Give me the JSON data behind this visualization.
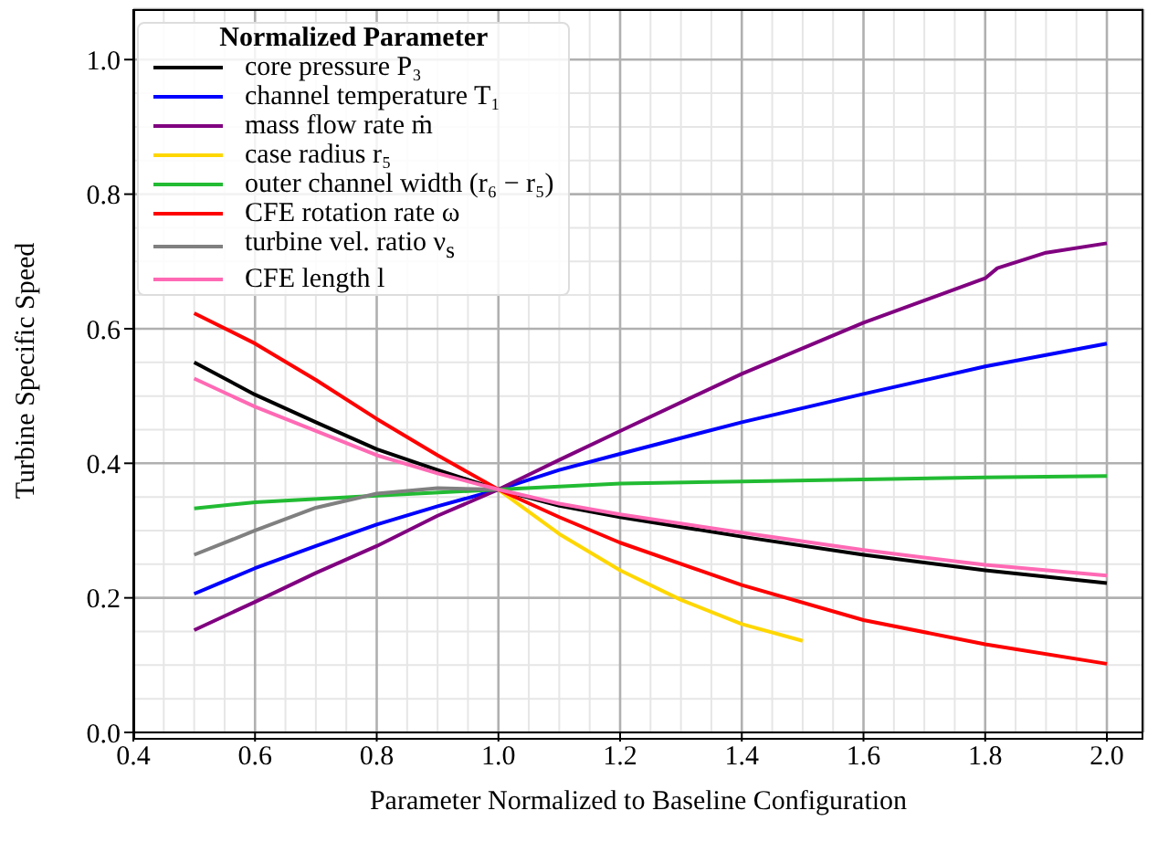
{
  "chart_data": {
    "type": "line",
    "xlabel": "Parameter Normalized to Baseline Configuration",
    "ylabel": "Turbine Specific Speed",
    "legend_title": "Normalized Parameter",
    "xlim": [
      0.4,
      2.06
    ],
    "xticks": [
      {
        "value": 0.4,
        "label": "0.4"
      },
      {
        "value": 0.6,
        "label": "0.6"
      },
      {
        "value": 0.8,
        "label": "0.8"
      },
      {
        "value": 1.0,
        "label": "1.0"
      },
      {
        "value": 1.2,
        "label": "1.2"
      },
      {
        "value": 1.4,
        "label": "1.4"
      },
      {
        "value": 1.6,
        "label": "1.6"
      },
      {
        "value": 1.8,
        "label": "1.8"
      },
      {
        "value": 2.0,
        "label": "2.0"
      }
    ],
    "ylim": [
      0,
      1.075
    ],
    "yticks": [
      {
        "value": 0,
        "label": "0.0"
      },
      {
        "value": 0.2,
        "label": "0.2"
      },
      {
        "value": 0.4,
        "label": "0.4"
      },
      {
        "value": 0.6,
        "label": "0.6"
      },
      {
        "value": 0.8,
        "label": "0.8"
      },
      {
        "value": 1.0,
        "label": "1.0"
      }
    ],
    "grid": true,
    "legend": "top left",
    "marker": "none",
    "line_style": "solid",
    "series": [
      {
        "name": "core pressure P₃",
        "color": "#000000",
        "x": [
          0.5,
          0.6,
          0.7,
          0.8,
          0.9,
          1.0,
          1.1,
          1.2,
          1.4,
          1.6,
          1.8,
          2.0
        ],
        "values": [
          0.55,
          0.502,
          0.461,
          0.421,
          0.39,
          0.361,
          0.337,
          0.32,
          0.291,
          0.264,
          0.241,
          0.222
        ]
      },
      {
        "name": "channel temperature T₁",
        "color": "#0000ff",
        "x": [
          0.5,
          0.6,
          0.7,
          0.8,
          0.9,
          1.0,
          1.1,
          1.2,
          1.4,
          1.6,
          1.8,
          2.0
        ],
        "values": [
          0.206,
          0.244,
          0.277,
          0.309,
          0.336,
          0.361,
          0.39,
          0.414,
          0.461,
          0.503,
          0.544,
          0.578
        ]
      },
      {
        "name": "mass flow rate ṁ",
        "color": "#800080",
        "x": [
          0.5,
          0.6,
          0.7,
          0.8,
          0.9,
          1.0,
          1.1,
          1.2,
          1.4,
          1.6,
          1.8,
          1.82,
          1.9,
          2.0
        ],
        "values": [
          0.152,
          0.194,
          0.237,
          0.277,
          0.322,
          0.361,
          0.405,
          0.448,
          0.533,
          0.609,
          0.675,
          0.69,
          0.713,
          0.727
        ]
      },
      {
        "name": "case radius r₅",
        "color": "#ffd700",
        "x": [
          1.0,
          1.1,
          1.2,
          1.3,
          1.4,
          1.5
        ],
        "values": [
          0.361,
          0.295,
          0.241,
          0.197,
          0.161,
          0.136
        ]
      },
      {
        "name": "outer channel width (r₆ − r₅)",
        "color": "#22bb33",
        "x": [
          0.5,
          0.6,
          0.8,
          1.0,
          1.2,
          1.4,
          1.6,
          1.8,
          2.0
        ],
        "values": [
          0.333,
          0.342,
          0.352,
          0.361,
          0.37,
          0.373,
          0.376,
          0.379,
          0.381
        ]
      },
      {
        "name": "CFE rotation rate ω",
        "color": "#ff0000",
        "x": [
          0.5,
          0.6,
          0.7,
          0.8,
          0.9,
          1.0,
          1.1,
          1.2,
          1.4,
          1.6,
          1.8,
          2.0
        ],
        "values": [
          0.623,
          0.578,
          0.524,
          0.466,
          0.412,
          0.361,
          0.32,
          0.282,
          0.219,
          0.167,
          0.131,
          0.102
        ]
      },
      {
        "name": "turbine vel. ratio ν$_{s}$",
        "color": "#808080",
        "x": [
          0.5,
          0.6,
          0.7,
          0.8,
          0.9,
          1.0
        ],
        "values": [
          0.264,
          0.3,
          0.334,
          0.355,
          0.363,
          0.361
        ]
      },
      {
        "name": "CFE length l",
        "color": "#ff69b4",
        "x": [
          0.5,
          0.6,
          0.7,
          0.8,
          0.9,
          1.0,
          1.1,
          1.2,
          1.4,
          1.6,
          1.8,
          2.0
        ],
        "values": [
          0.526,
          0.484,
          0.448,
          0.412,
          0.385,
          0.361,
          0.34,
          0.324,
          0.297,
          0.271,
          0.249,
          0.233
        ]
      }
    ]
  }
}
